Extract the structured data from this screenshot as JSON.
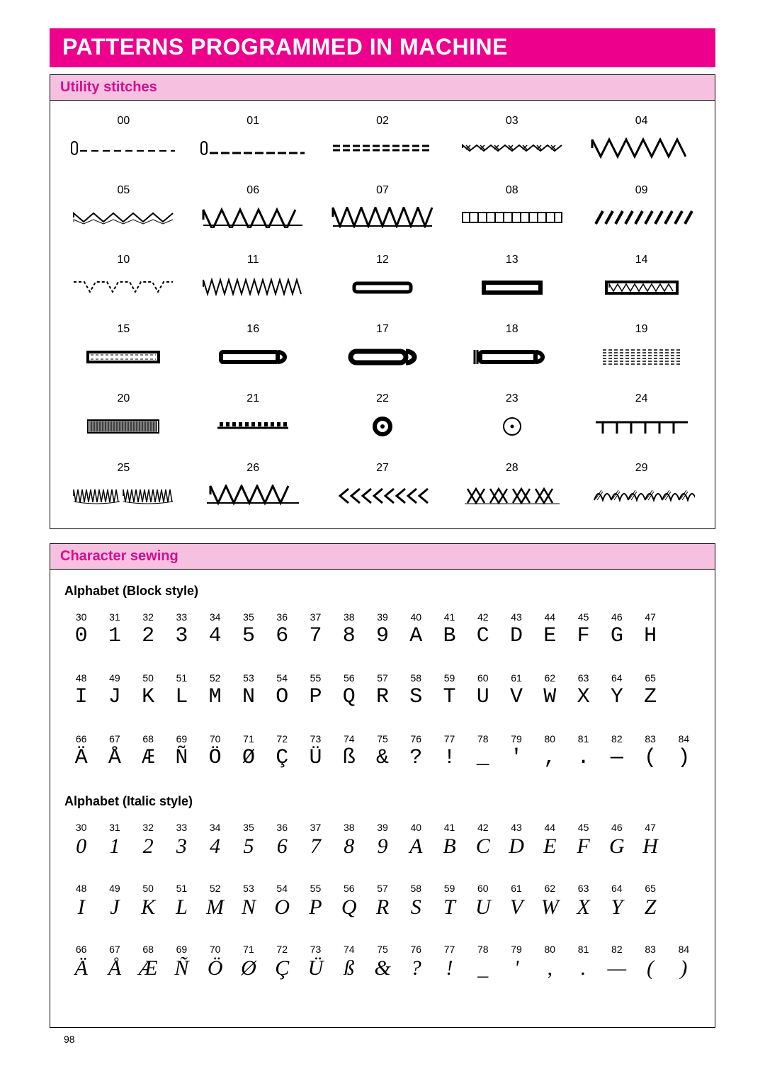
{
  "colors": {
    "banner_bg": "#ec008c",
    "banner_fg": "#ffffff",
    "section_header_bg": "#f6c1e1",
    "section_header_fg": "#d60e8c"
  },
  "title": "PATTERNS PROGRAMMED IN MACHINE",
  "page_number": "98",
  "utility": {
    "header": "Utility stitches",
    "stitches": [
      {
        "num": "00"
      },
      {
        "num": "01"
      },
      {
        "num": "02"
      },
      {
        "num": "03"
      },
      {
        "num": "04"
      },
      {
        "num": "05"
      },
      {
        "num": "06"
      },
      {
        "num": "07"
      },
      {
        "num": "08"
      },
      {
        "num": "09"
      },
      {
        "num": "10"
      },
      {
        "num": "11"
      },
      {
        "num": "12"
      },
      {
        "num": "13"
      },
      {
        "num": "14"
      },
      {
        "num": "15"
      },
      {
        "num": "16"
      },
      {
        "num": "17"
      },
      {
        "num": "18"
      },
      {
        "num": "19"
      },
      {
        "num": "20"
      },
      {
        "num": "21"
      },
      {
        "num": "22"
      },
      {
        "num": "23"
      },
      {
        "num": "24"
      },
      {
        "num": "25"
      },
      {
        "num": "26"
      },
      {
        "num": "27"
      },
      {
        "num": "28"
      },
      {
        "num": "29"
      }
    ]
  },
  "character": {
    "header": "Character sewing",
    "block_label": "Alphabet (Block style)",
    "italic_label": "Alphabet (Italic style)",
    "block_rows": [
      [
        {
          "n": "30",
          "g": "0"
        },
        {
          "n": "31",
          "g": "1"
        },
        {
          "n": "32",
          "g": "2"
        },
        {
          "n": "33",
          "g": "3"
        },
        {
          "n": "34",
          "g": "4"
        },
        {
          "n": "35",
          "g": "5"
        },
        {
          "n": "36",
          "g": "6"
        },
        {
          "n": "37",
          "g": "7"
        },
        {
          "n": "38",
          "g": "8"
        },
        {
          "n": "39",
          "g": "9"
        },
        {
          "n": "40",
          "g": "A"
        },
        {
          "n": "41",
          "g": "B"
        },
        {
          "n": "42",
          "g": "C"
        },
        {
          "n": "43",
          "g": "D"
        },
        {
          "n": "44",
          "g": "E"
        },
        {
          "n": "45",
          "g": "F"
        },
        {
          "n": "46",
          "g": "G"
        },
        {
          "n": "47",
          "g": "H"
        },
        {
          "n": "",
          "g": ""
        }
      ],
      [
        {
          "n": "48",
          "g": "I"
        },
        {
          "n": "49",
          "g": "J"
        },
        {
          "n": "50",
          "g": "K"
        },
        {
          "n": "51",
          "g": "L"
        },
        {
          "n": "52",
          "g": "M"
        },
        {
          "n": "53",
          "g": "N"
        },
        {
          "n": "54",
          "g": "O"
        },
        {
          "n": "55",
          "g": "P"
        },
        {
          "n": "56",
          "g": "Q"
        },
        {
          "n": "57",
          "g": "R"
        },
        {
          "n": "58",
          "g": "S"
        },
        {
          "n": "59",
          "g": "T"
        },
        {
          "n": "60",
          "g": "U"
        },
        {
          "n": "61",
          "g": "V"
        },
        {
          "n": "62",
          "g": "W"
        },
        {
          "n": "63",
          "g": "X"
        },
        {
          "n": "64",
          "g": "Y"
        },
        {
          "n": "65",
          "g": "Z"
        },
        {
          "n": "",
          "g": ""
        }
      ],
      [
        {
          "n": "66",
          "g": "Ä"
        },
        {
          "n": "67",
          "g": "Å"
        },
        {
          "n": "68",
          "g": "Æ"
        },
        {
          "n": "69",
          "g": "Ñ"
        },
        {
          "n": "70",
          "g": "Ö"
        },
        {
          "n": "71",
          "g": "Ø"
        },
        {
          "n": "72",
          "g": "Ç"
        },
        {
          "n": "73",
          "g": "Ü"
        },
        {
          "n": "74",
          "g": "ß"
        },
        {
          "n": "75",
          "g": "&"
        },
        {
          "n": "76",
          "g": "?"
        },
        {
          "n": "77",
          "g": "!"
        },
        {
          "n": "78",
          "g": "_"
        },
        {
          "n": "79",
          "g": "'"
        },
        {
          "n": "80",
          "g": ","
        },
        {
          "n": "81",
          "g": "."
        },
        {
          "n": "82",
          "g": "—"
        },
        {
          "n": "83",
          "g": "("
        },
        {
          "n": "84",
          "g": ")"
        }
      ]
    ],
    "italic_rows": [
      [
        {
          "n": "30",
          "g": "0"
        },
        {
          "n": "31",
          "g": "1"
        },
        {
          "n": "32",
          "g": "2"
        },
        {
          "n": "33",
          "g": "3"
        },
        {
          "n": "34",
          "g": "4"
        },
        {
          "n": "35",
          "g": "5"
        },
        {
          "n": "36",
          "g": "6"
        },
        {
          "n": "37",
          "g": "7"
        },
        {
          "n": "38",
          "g": "8"
        },
        {
          "n": "39",
          "g": "9"
        },
        {
          "n": "40",
          "g": "A"
        },
        {
          "n": "41",
          "g": "B"
        },
        {
          "n": "42",
          "g": "C"
        },
        {
          "n": "43",
          "g": "D"
        },
        {
          "n": "44",
          "g": "E"
        },
        {
          "n": "45",
          "g": "F"
        },
        {
          "n": "46",
          "g": "G"
        },
        {
          "n": "47",
          "g": "H"
        },
        {
          "n": "",
          "g": ""
        }
      ],
      [
        {
          "n": "48",
          "g": "I"
        },
        {
          "n": "49",
          "g": "J"
        },
        {
          "n": "50",
          "g": "K"
        },
        {
          "n": "51",
          "g": "L"
        },
        {
          "n": "52",
          "g": "M"
        },
        {
          "n": "53",
          "g": "N"
        },
        {
          "n": "54",
          "g": "O"
        },
        {
          "n": "55",
          "g": "P"
        },
        {
          "n": "56",
          "g": "Q"
        },
        {
          "n": "57",
          "g": "R"
        },
        {
          "n": "58",
          "g": "S"
        },
        {
          "n": "59",
          "g": "T"
        },
        {
          "n": "60",
          "g": "U"
        },
        {
          "n": "61",
          "g": "V"
        },
        {
          "n": "62",
          "g": "W"
        },
        {
          "n": "63",
          "g": "X"
        },
        {
          "n": "64",
          "g": "Y"
        },
        {
          "n": "65",
          "g": "Z"
        },
        {
          "n": "",
          "g": ""
        }
      ],
      [
        {
          "n": "66",
          "g": "Ä"
        },
        {
          "n": "67",
          "g": "Å"
        },
        {
          "n": "68",
          "g": "Æ"
        },
        {
          "n": "69",
          "g": "Ñ"
        },
        {
          "n": "70",
          "g": "Ö"
        },
        {
          "n": "71",
          "g": "Ø"
        },
        {
          "n": "72",
          "g": "Ç"
        },
        {
          "n": "73",
          "g": "Ü"
        },
        {
          "n": "74",
          "g": "ß"
        },
        {
          "n": "75",
          "g": "&"
        },
        {
          "n": "76",
          "g": "?"
        },
        {
          "n": "77",
          "g": "!"
        },
        {
          "n": "78",
          "g": "_"
        },
        {
          "n": "79",
          "g": "'"
        },
        {
          "n": "80",
          "g": ","
        },
        {
          "n": "81",
          "g": "."
        },
        {
          "n": "82",
          "g": "—"
        },
        {
          "n": "83",
          "g": "("
        },
        {
          "n": "84",
          "g": ")"
        }
      ]
    ]
  }
}
